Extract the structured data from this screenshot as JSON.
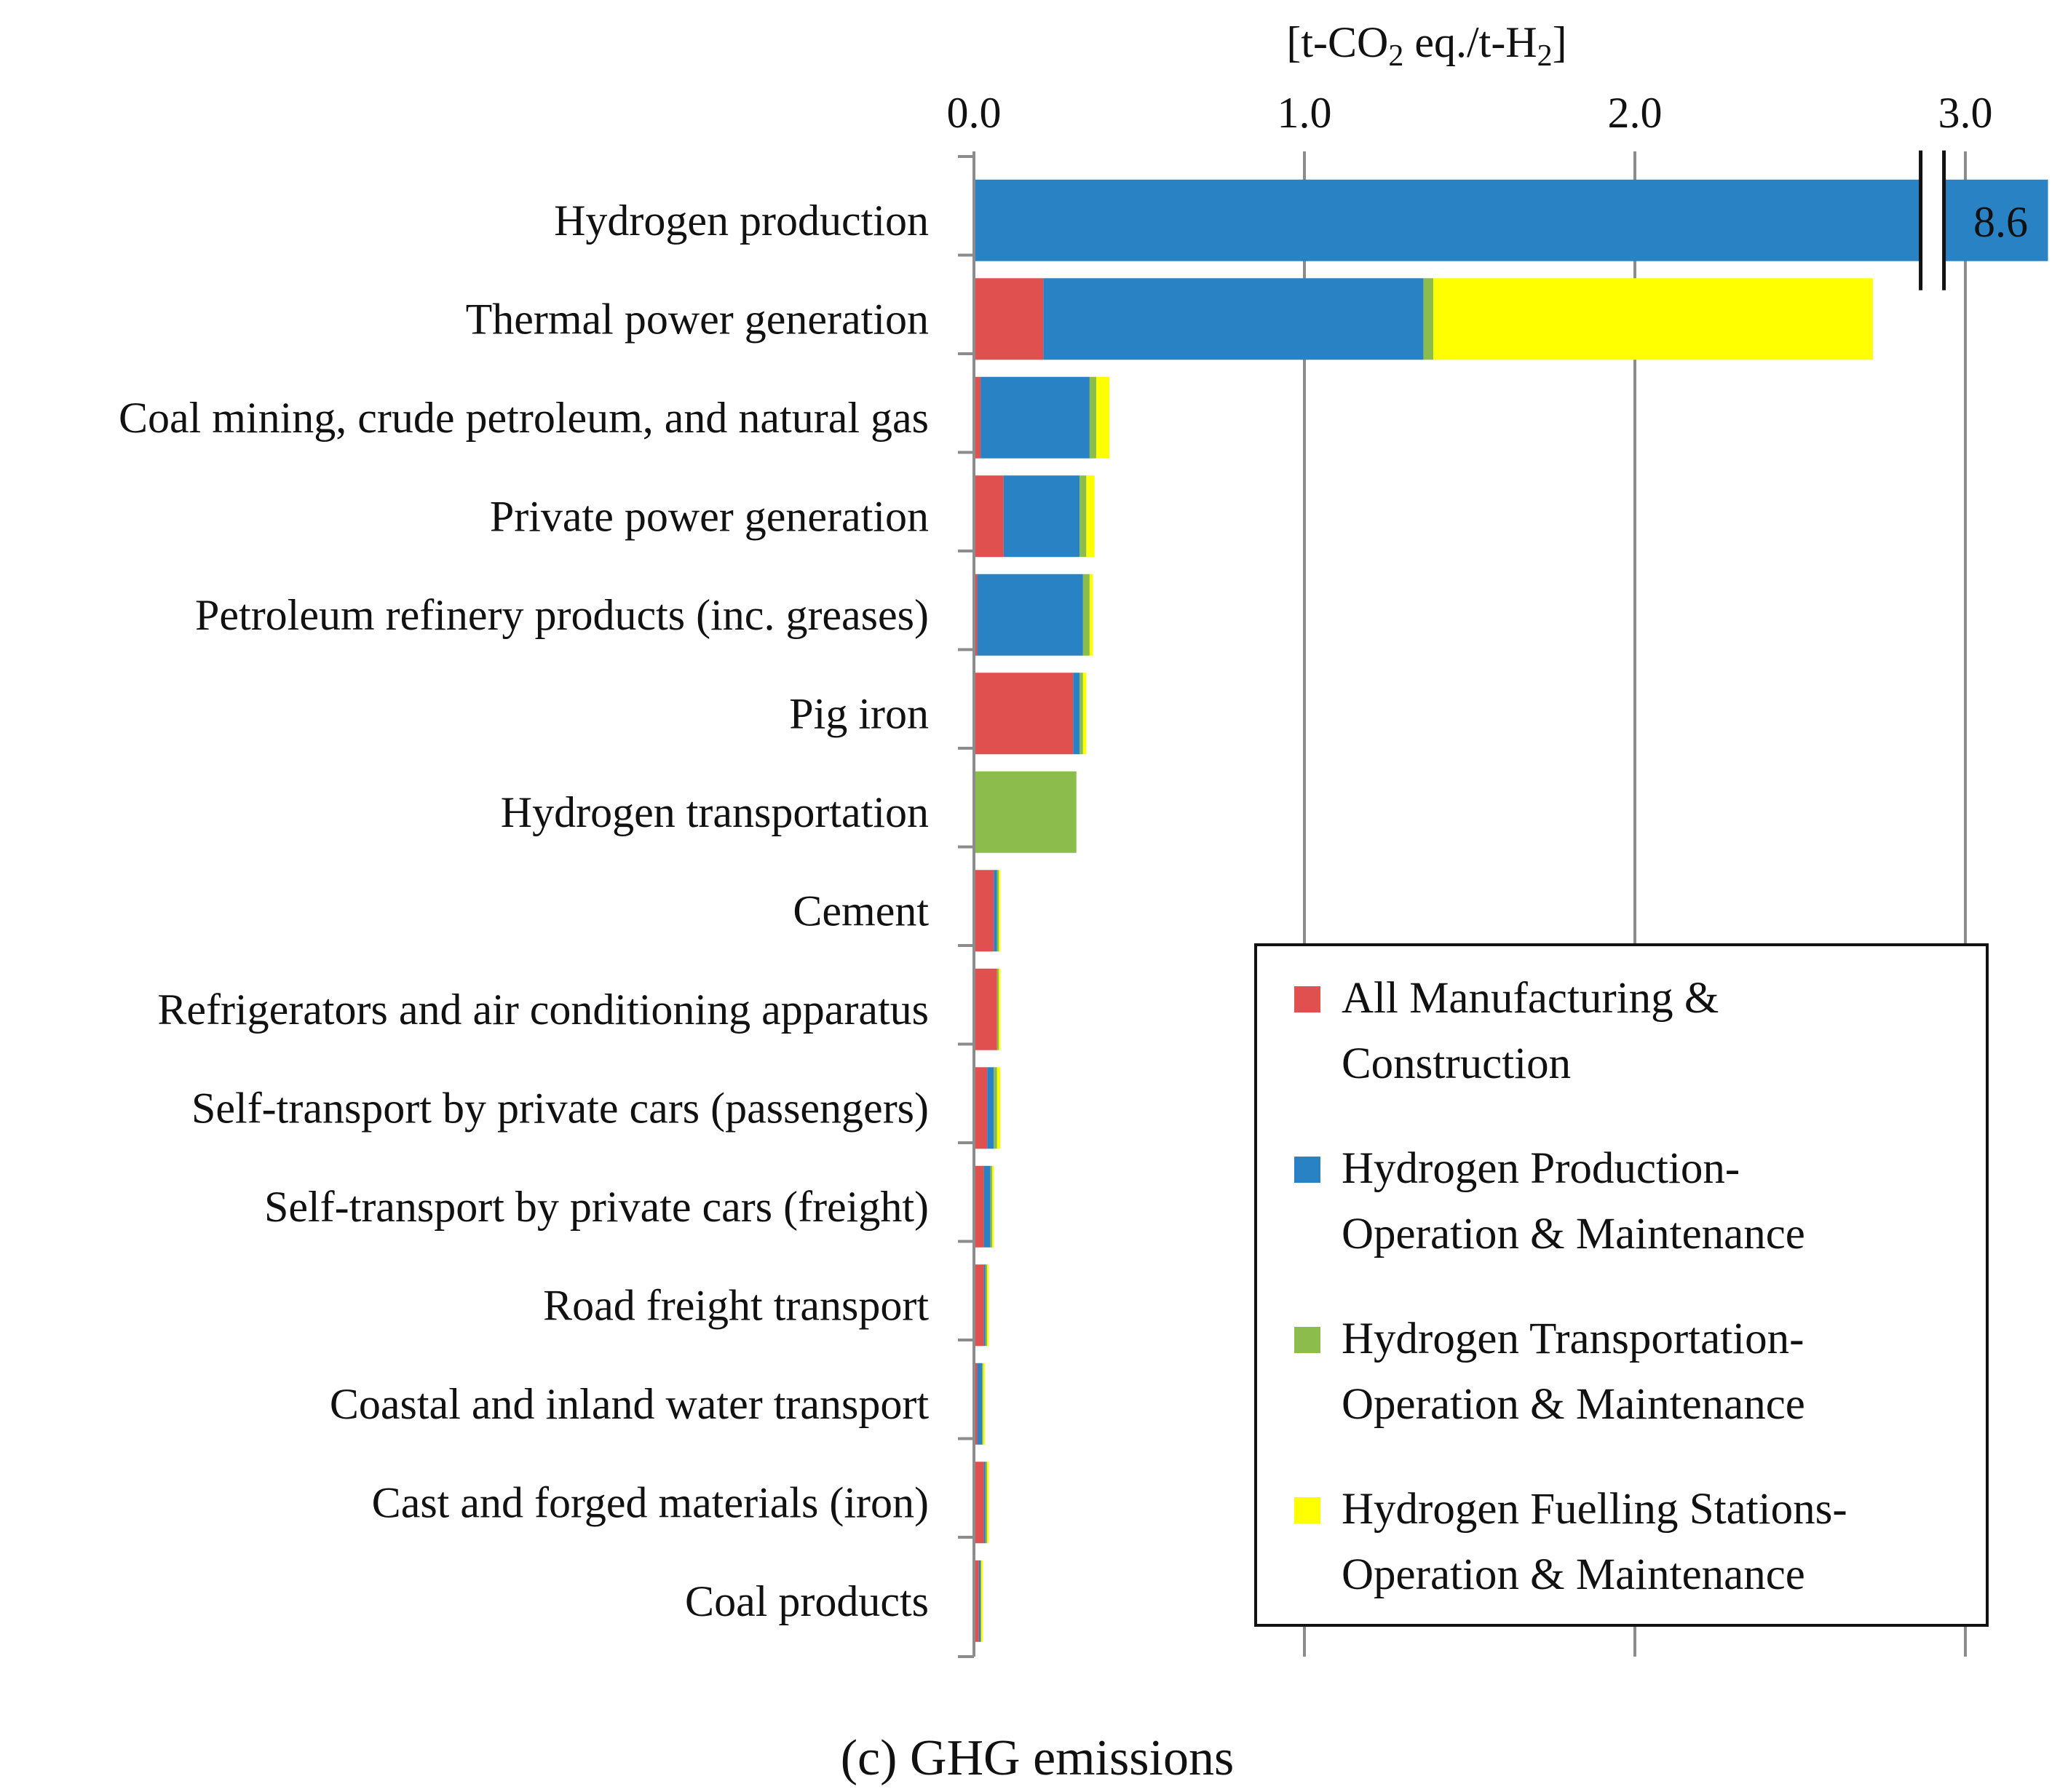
{
  "chart_data": {
    "type": "bar",
    "orientation": "horizontal",
    "stacked": true,
    "caption": "(c) GHG emissions",
    "unit_label": {
      "prefix": "[t-CO",
      "sub1": "2",
      "middle": " eq./t-H",
      "sub2": "2",
      "suffix": "]"
    },
    "x_ticks": [
      "0.0",
      "1.0",
      "2.0",
      "3.0"
    ],
    "x_tick_values": [
      0,
      1,
      2,
      3
    ],
    "xlim": [
      0,
      3.25
    ],
    "grid": true,
    "axis_break": {
      "at": 2.9,
      "label": "8.6",
      "category": "Hydrogen production"
    },
    "categories": [
      "Hydrogen production",
      "Thermal power generation",
      "Coal mining, crude petroleum, and natural gas",
      "Private power generation",
      "Petroleum refinery products (inc. greases)",
      "Pig iron",
      "Hydrogen transportation",
      "Cement",
      "Refrigerators and air conditioning apparatus",
      "Self-transport by private cars (passengers)",
      "Self-transport by private cars (freight)",
      "Road freight transport",
      "Coastal and inland water transport",
      "Cast and forged materials (iron)",
      "Coal products"
    ],
    "series": [
      {
        "name": "All Manufacturing & Construction",
        "color": "#e0504e",
        "values": [
          0,
          0.21,
          0.02,
          0.09,
          0.01,
          0.3,
          0,
          0.06,
          0.07,
          0.04,
          0.03,
          0.03,
          0.01,
          0.03,
          0.015
        ]
      },
      {
        "name": "Hydrogen Production- Operation & Maintenance",
        "color": "#2882c3",
        "values": [
          8.6,
          1.15,
          0.33,
          0.23,
          0.32,
          0.02,
          0,
          0.01,
          0.0,
          0.02,
          0.02,
          0.005,
          0.015,
          0.005,
          0.005
        ]
      },
      {
        "name": "Hydrogen Transportation- Operation & Maintenance",
        "color": "#8cbd4c",
        "values": [
          0,
          0.03,
          0.02,
          0.02,
          0.02,
          0.01,
          0.31,
          0.005,
          0.005,
          0.01,
          0.005,
          0.005,
          0.003,
          0.005,
          0.002
        ]
      },
      {
        "name": "Hydrogen Fuelling Stations- Operation & Maintenance",
        "color": "#ffff00",
        "values": [
          0,
          1.33,
          0.04,
          0.025,
          0.01,
          0.01,
          0,
          0.005,
          0.005,
          0.01,
          0.005,
          0.005,
          0.005,
          0.005,
          0.005
        ]
      }
    ],
    "legend": {
      "position": "bottom-right",
      "entries": [
        {
          "line1": "All Manufacturing &",
          "line2": "Construction",
          "color": "#e0504e"
        },
        {
          "line1": "Hydrogen Production-",
          "line2": "Operation & Maintenance",
          "color": "#2882c3"
        },
        {
          "line1": "Hydrogen Transportation-",
          "line2": "Operation & Maintenance",
          "color": "#8cbd4c"
        },
        {
          "line1": "Hydrogen Fuelling Stations-",
          "line2": "Operation & Maintenance",
          "color": "#ffff00"
        }
      ]
    }
  }
}
